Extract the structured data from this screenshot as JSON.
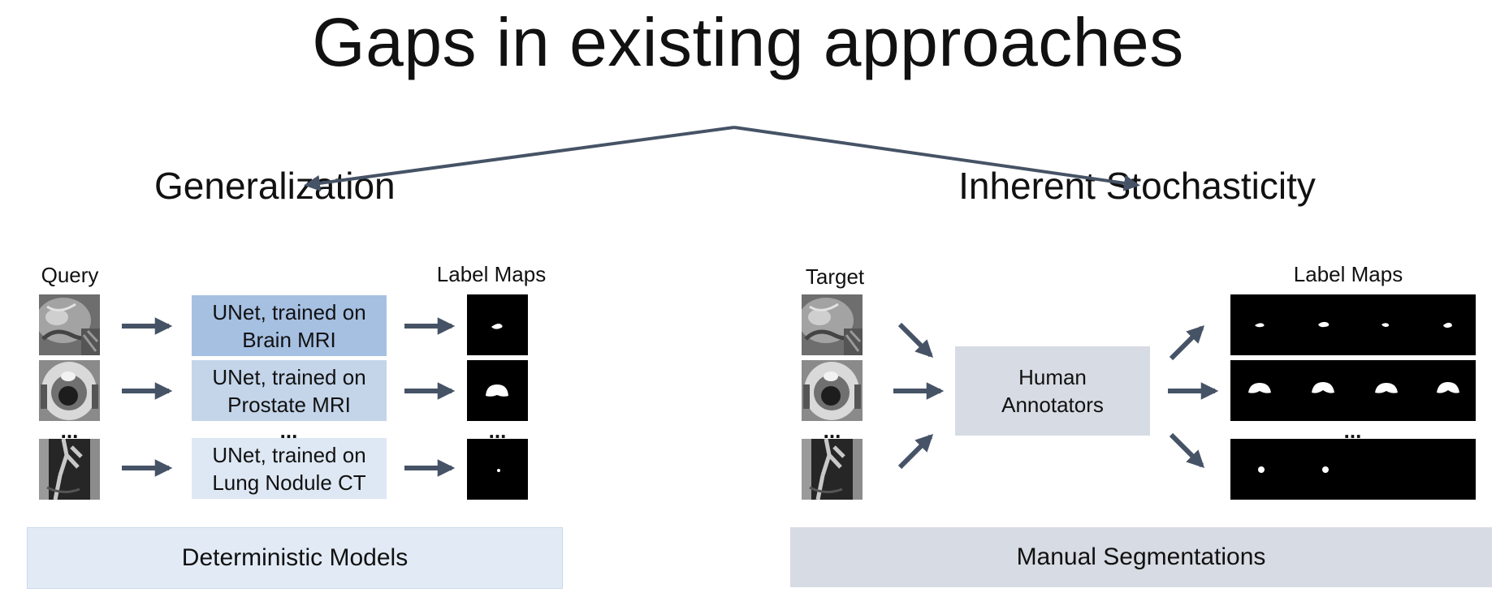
{
  "title": "Gaps in existing approaches",
  "left": {
    "heading": "Generalization",
    "query_label": "Query",
    "label_maps_label": "Label Maps",
    "models": [
      {
        "text": "UNet, trained on\nBrain MRI",
        "color": "#a6c0e2"
      },
      {
        "text": "UNet, trained on\nProstate MRI",
        "color": "#c4d5ea"
      },
      {
        "text": "UNet, trained on\nLung Nodule CT",
        "color": "#dee8f4"
      }
    ],
    "ellipsis": "...",
    "footer": "Deterministic Models",
    "footer_color": "#e2ebf5"
  },
  "right": {
    "heading": "Inherent Stochasticity",
    "target_label": "Target",
    "label_maps_label": "Label Maps",
    "annotators": "Human\nAnnotators",
    "annotators_color": "#d7dbe3",
    "ellipsis": "...",
    "footer": "Manual Segmentations",
    "footer_color": "#d7dbe3"
  },
  "colors": {
    "arrow": "#465366",
    "mask": "#000000"
  },
  "icons": [
    "brain-mri-thumbnail",
    "prostate-mri-thumbnail",
    "lung-ct-thumbnail"
  ]
}
